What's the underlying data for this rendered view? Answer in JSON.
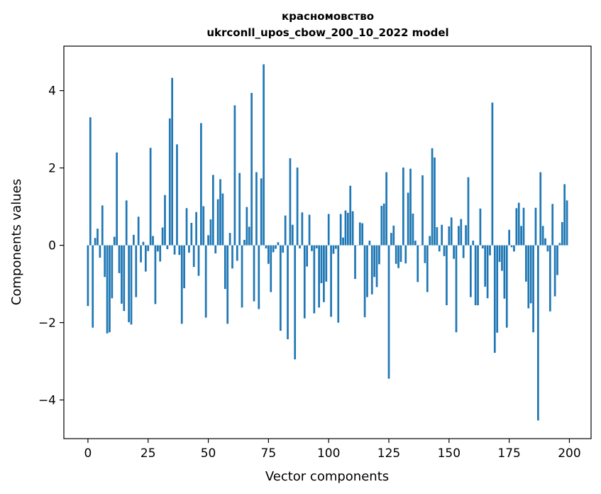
{
  "chart_data": {
    "type": "bar",
    "title": "красномовство",
    "subtitle": "ukrconll_upos_cbow_200_10_2022 model",
    "xlabel": "Vector components",
    "ylabel": "Components values",
    "xlim": [
      -10,
      209
    ],
    "ylim": [
      -5,
      5.15
    ],
    "xticks": [
      0,
      25,
      50,
      75,
      100,
      125,
      150,
      175,
      200
    ],
    "xtick_labels": [
      "0",
      "25",
      "50",
      "75",
      "100",
      "125",
      "150",
      "175",
      "200"
    ],
    "yticks": [
      -4,
      -2,
      0,
      2,
      4
    ],
    "ytick_labels": [
      "−4",
      "−2",
      "0",
      "2",
      "4"
    ],
    "grid": false,
    "bar_color": "#1f77b4",
    "x": [
      0,
      1,
      2,
      3,
      4,
      5,
      6,
      7,
      8,
      9,
      10,
      11,
      12,
      13,
      14,
      15,
      16,
      17,
      18,
      19,
      20,
      21,
      22,
      23,
      24,
      25,
      26,
      27,
      28,
      29,
      30,
      31,
      32,
      33,
      34,
      35,
      36,
      37,
      38,
      39,
      40,
      41,
      42,
      43,
      44,
      45,
      46,
      47,
      48,
      49,
      50,
      51,
      52,
      53,
      54,
      55,
      56,
      57,
      58,
      59,
      60,
      61,
      62,
      63,
      64,
      65,
      66,
      67,
      68,
      69,
      70,
      71,
      72,
      73,
      74,
      75,
      76,
      77,
      78,
      79,
      80,
      81,
      82,
      83,
      84,
      85,
      86,
      87,
      88,
      89,
      90,
      91,
      92,
      93,
      94,
      95,
      96,
      97,
      98,
      99,
      100,
      101,
      102,
      103,
      104,
      105,
      106,
      107,
      108,
      109,
      110,
      111,
      112,
      113,
      114,
      115,
      116,
      117,
      118,
      119,
      120,
      121,
      122,
      123,
      124,
      125,
      126,
      127,
      128,
      129,
      130,
      131,
      132,
      133,
      134,
      135,
      136,
      137,
      138,
      139,
      140,
      141,
      142,
      143,
      144,
      145,
      146,
      147,
      148,
      149,
      150,
      151,
      152,
      153,
      154,
      155,
      156,
      157,
      158,
      159,
      160,
      161,
      162,
      163,
      164,
      165,
      166,
      167,
      168,
      169,
      170,
      171,
      172,
      173,
      174,
      175,
      176,
      177,
      178,
      179,
      180,
      181,
      182,
      183,
      184,
      185,
      186,
      187,
      188,
      189,
      190,
      191,
      192,
      193,
      194,
      195,
      196,
      197,
      198,
      199
    ],
    "values": [
      -1.57,
      3.31,
      -2.13,
      0.19,
      0.43,
      -0.32,
      1.03,
      -0.82,
      -2.28,
      -2.25,
      -1.37,
      0.22,
      2.4,
      -0.72,
      -1.51,
      -1.7,
      1.16,
      -1.99,
      -2.05,
      0.27,
      -1.34,
      0.74,
      -0.44,
      0.09,
      -0.68,
      -0.15,
      2.52,
      0.24,
      -1.52,
      -0.16,
      -0.42,
      0.46,
      1.3,
      -0.1,
      3.28,
      4.33,
      -0.24,
      2.61,
      -0.25,
      -2.03,
      -1.11,
      0.96,
      -0.19,
      0.58,
      -0.56,
      0.86,
      -0.79,
      3.16,
      1.01,
      -1.87,
      0.26,
      0.67,
      1.82,
      -0.21,
      1.19,
      1.71,
      1.34,
      -1.13,
      -2.03,
      0.32,
      -0.6,
      3.62,
      -0.4,
      1.87,
      -1.61,
      0.14,
      0.99,
      0.48,
      3.94,
      -1.45,
      1.89,
      -1.65,
      1.73,
      4.68,
      -0.08,
      -0.48,
      -1.21,
      -0.18,
      -0.09,
      0.08,
      -2.21,
      -0.19,
      0.77,
      -2.43,
      2.25,
      0.53,
      -2.95,
      2.01,
      -0.08,
      0.85,
      -1.89,
      -0.55,
      0.79,
      -0.15,
      -1.76,
      -0.08,
      -1.61,
      -0.98,
      -1.47,
      -0.94,
      0.81,
      -1.85,
      -0.22,
      -0.09,
      -2.0,
      0.81,
      0.2,
      0.9,
      0.84,
      1.54,
      0.88,
      -0.87,
      0.0,
      0.59,
      0.57,
      -1.86,
      -1.34,
      0.12,
      -1.27,
      -0.82,
      -1.08,
      -0.49,
      1.02,
      1.08,
      1.89,
      -3.45,
      0.32,
      0.51,
      -0.48,
      -0.59,
      -0.43,
      2.01,
      -0.47,
      1.36,
      1.98,
      0.82,
      0.12,
      -0.95,
      0.0,
      1.81,
      -0.46,
      -1.21,
      0.24,
      2.51,
      2.27,
      0.47,
      -0.16,
      0.53,
      -0.28,
      -1.55,
      0.49,
      0.72,
      -0.35,
      -2.25,
      0.5,
      0.68,
      -0.33,
      0.52,
      1.76,
      -1.34,
      0.12,
      -1.55,
      -1.55,
      0.95,
      -0.08,
      -1.07,
      -1.37,
      -0.26,
      3.69,
      -2.78,
      -2.26,
      -0.43,
      -0.66,
      -1.38,
      -2.13,
      0.4,
      -0.05,
      -0.16,
      0.96,
      1.1,
      0.5,
      0.97,
      -0.94,
      -1.63,
      -1.5,
      -2.25,
      0.97,
      -4.53,
      1.89,
      0.5,
      0.18,
      -0.16,
      -1.71,
      1.07,
      -1.32,
      -0.77,
      0.06,
      0.6,
      1.58,
      1.16
    ]
  }
}
